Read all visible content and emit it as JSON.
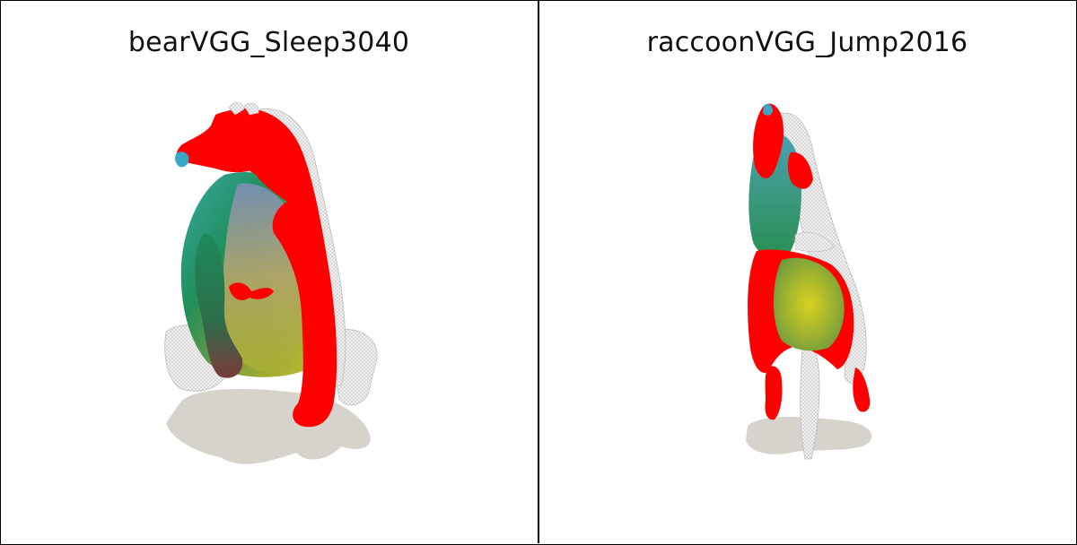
{
  "panels": [
    {
      "title": "bearVGG_Sleep3040",
      "subject": "bear 3D mesh rendering with color-mapped correspondence"
    },
    {
      "title": "raccoonVGG_Jump2016",
      "subject": "raccoon 3D mesh rendering with color-mapped correspondence"
    }
  ],
  "colors": {
    "background": "#ffffff",
    "border": "#000000",
    "shadow": "#d6d3cc",
    "mesh_wire": "#e4e4e4",
    "seg_red": "#ff0000",
    "seg_green": "#1a8f55",
    "seg_yellow": "#c9c52a",
    "seg_blue": "#3aa6c8"
  }
}
